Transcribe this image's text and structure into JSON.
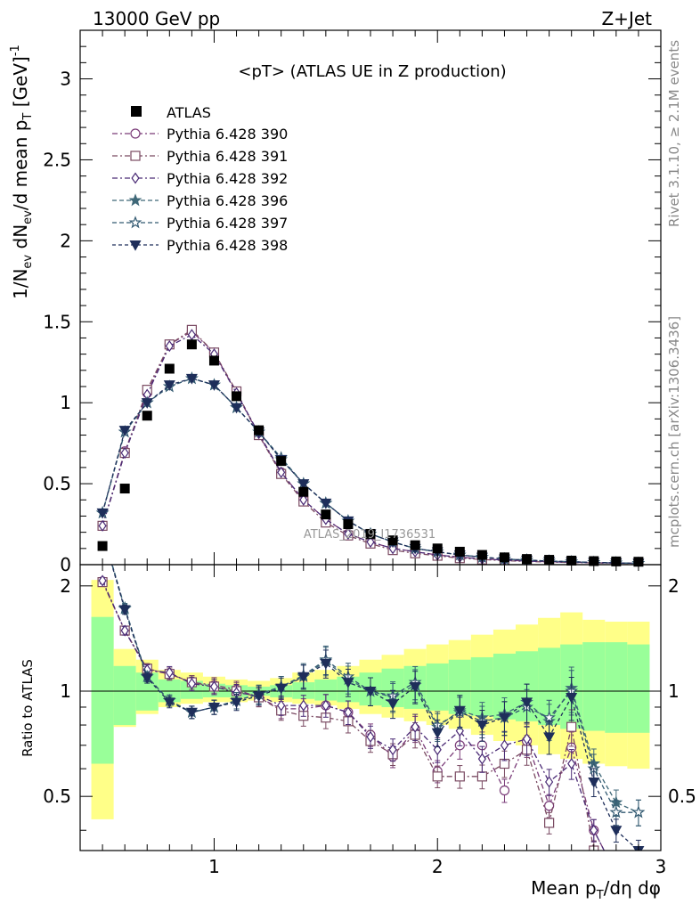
{
  "header": {
    "left": "13000 GeV pp",
    "right": "Z+Jet"
  },
  "side": {
    "rivet": "Rivet 3.1.10, ≥ 2.1M events",
    "mcplots": "mcplots.cern.ch [arXiv:1306.3436]"
  },
  "chart_data": {
    "type": "line",
    "title": "<pT> (ATLAS UE in Z production)",
    "watermark": "ATLAS_2019_I1736531",
    "xlabel": "Mean p_T/dη dφ",
    "ylabel": "1/N_ev dN_ev/d mean p_T [GeV]^-1",
    "ratio_ylabel": "Ratio to ATLAS",
    "xlim": [
      0.4,
      3.0
    ],
    "ylim": [
      0,
      3.3
    ],
    "ratio_ylim": [
      0.35,
      2.3
    ],
    "x_ticks": [
      "1",
      "2",
      "3"
    ],
    "y_ticks": [
      "0",
      "0.5",
      "1",
      "1.5",
      "2",
      "2.5",
      "3"
    ],
    "ratio_y_ticks": [
      "0.5",
      "1",
      "2"
    ],
    "x": [
      0.5,
      0.6,
      0.7,
      0.8,
      0.9,
      1.0,
      1.1,
      1.2,
      1.3,
      1.4,
      1.5,
      1.6,
      1.7,
      1.8,
      1.9,
      2.0,
      2.1,
      2.2,
      2.3,
      2.4,
      2.5,
      2.6,
      2.7,
      2.8,
      2.9
    ],
    "data": {
      "name": "ATLAS",
      "values": [
        0.115,
        0.47,
        0.92,
        1.21,
        1.36,
        1.26,
        1.04,
        0.83,
        0.64,
        0.45,
        0.31,
        0.25,
        0.19,
        0.15,
        0.12,
        0.1,
        0.08,
        0.06,
        0.045,
        0.035,
        0.03,
        0.025,
        0.022,
        0.02,
        0.018
      ]
    },
    "bands": {
      "inner": [
        [
          0.62,
          1.63
        ],
        [
          0.8,
          1.18
        ],
        [
          0.88,
          1.13
        ],
        [
          0.93,
          1.08
        ],
        [
          0.95,
          1.07
        ],
        [
          0.96,
          1.05
        ],
        [
          0.96,
          1.04
        ],
        [
          0.97,
          1.03
        ],
        [
          0.96,
          1.04
        ],
        [
          0.95,
          1.06
        ],
        [
          0.94,
          1.08
        ],
        [
          0.93,
          1.1
        ],
        [
          0.91,
          1.13
        ],
        [
          0.9,
          1.16
        ],
        [
          0.89,
          1.18
        ],
        [
          0.88,
          1.2
        ],
        [
          0.86,
          1.23
        ],
        [
          0.85,
          1.25
        ],
        [
          0.83,
          1.28
        ],
        [
          0.82,
          1.3
        ],
        [
          0.8,
          1.33
        ],
        [
          0.78,
          1.36
        ],
        [
          0.77,
          1.38
        ],
        [
          0.76,
          1.38
        ],
        [
          0.76,
          1.36
        ]
      ],
      "outer": [
        [
          0.43,
          2.08
        ],
        [
          0.79,
          1.32
        ],
        [
          0.86,
          1.23
        ],
        [
          0.9,
          1.15
        ],
        [
          0.92,
          1.13
        ],
        [
          0.93,
          1.1
        ],
        [
          0.93,
          1.08
        ],
        [
          0.94,
          1.07
        ],
        [
          0.93,
          1.09
        ],
        [
          0.92,
          1.13
        ],
        [
          0.91,
          1.15
        ],
        [
          0.89,
          1.18
        ],
        [
          0.86,
          1.23
        ],
        [
          0.84,
          1.27
        ],
        [
          0.82,
          1.32
        ],
        [
          0.8,
          1.36
        ],
        [
          0.78,
          1.4
        ],
        [
          0.75,
          1.45
        ],
        [
          0.72,
          1.5
        ],
        [
          0.7,
          1.55
        ],
        [
          0.66,
          1.62
        ],
        [
          0.64,
          1.68
        ],
        [
          0.62,
          1.6
        ],
        [
          0.61,
          1.58
        ],
        [
          0.6,
          1.58
        ]
      ]
    },
    "series": [
      {
        "name": "Pythia 6.428 390",
        "color": "#7a3b78",
        "dash": "6,3,2,3",
        "marker": "circle",
        "fill": "none",
        "values": [
          0.24,
          0.7,
          1.06,
          1.36,
          1.44,
          1.31,
          1.06,
          0.8,
          0.57,
          0.4,
          0.28,
          0.19,
          0.14,
          0.1,
          0.08,
          0.06,
          0.046,
          0.036,
          0.028,
          0.022,
          0.018,
          0.015,
          0.012,
          0.01,
          0.008
        ],
        "ratio": [
          2.06,
          1.49,
          1.15,
          1.12,
          1.06,
          1.04,
          1.01,
          0.96,
          0.89,
          0.89,
          0.91,
          0.87,
          0.75,
          0.65,
          0.78,
          0.59,
          0.7,
          0.7,
          0.52,
          0.72,
          0.47,
          0.69,
          0.4,
          0.3,
          0.3
        ]
      },
      {
        "name": "Pythia 6.428 391",
        "color": "#7a4a62",
        "dash": "6,3,2,3",
        "marker": "square",
        "fill": "none",
        "values": [
          0.24,
          0.69,
          1.08,
          1.36,
          1.45,
          1.31,
          1.07,
          0.8,
          0.56,
          0.39,
          0.26,
          0.18,
          0.13,
          0.09,
          0.07,
          0.055,
          0.04,
          0.032,
          0.025,
          0.02,
          0.016,
          0.013,
          0.011,
          0.009,
          0.007
        ],
        "ratio": [
          2.05,
          1.49,
          1.16,
          1.12,
          1.06,
          1.03,
          1.0,
          0.96,
          0.88,
          0.85,
          0.84,
          0.82,
          0.72,
          0.66,
          0.75,
          0.57,
          0.57,
          0.57,
          0.62,
          0.68,
          0.42,
          0.79,
          0.35,
          0.3,
          0.3
        ]
      },
      {
        "name": "Pythia 6.428 392",
        "color": "#4a2a75",
        "dash": "6,3,2,3",
        "marker": "diamond",
        "fill": "none",
        "values": [
          0.24,
          0.69,
          1.05,
          1.35,
          1.42,
          1.3,
          1.06,
          0.81,
          0.57,
          0.4,
          0.28,
          0.19,
          0.14,
          0.1,
          0.08,
          0.06,
          0.046,
          0.036,
          0.028,
          0.022,
          0.018,
          0.015,
          0.012,
          0.01,
          0.008
        ],
        "ratio": [
          2.07,
          1.49,
          1.15,
          1.13,
          1.05,
          1.03,
          0.99,
          0.97,
          0.91,
          0.91,
          0.91,
          0.87,
          0.74,
          0.68,
          0.79,
          0.68,
          0.77,
          0.64,
          0.7,
          0.73,
          0.55,
          0.62,
          0.4,
          0.3,
          0.3
        ]
      },
      {
        "name": "Pythia 6.428 396",
        "color": "#3f6878",
        "dash": "5,3",
        "marker": "star",
        "fill": "#3f6878",
        "values": [
          0.32,
          0.82,
          1.0,
          1.1,
          1.15,
          1.11,
          0.97,
          0.82,
          0.65,
          0.5,
          0.38,
          0.27,
          0.19,
          0.14,
          0.1,
          0.08,
          0.06,
          0.046,
          0.035,
          0.028,
          0.022,
          0.018,
          0.014,
          0.011,
          0.008
        ],
        "ratio": [
          2.85,
          1.72,
          1.1,
          0.94,
          0.87,
          0.9,
          0.94,
          0.98,
          1.03,
          1.1,
          1.22,
          1.08,
          1.0,
          0.96,
          1.04,
          0.79,
          0.88,
          0.84,
          0.86,
          0.93,
          0.82,
          1.02,
          0.62,
          0.48,
          0.45
        ]
      },
      {
        "name": "Pythia 6.428 397",
        "color": "#335a72",
        "dash": "5,3",
        "marker": "star",
        "fill": "none",
        "values": [
          0.32,
          0.82,
          1.0,
          1.1,
          1.15,
          1.11,
          0.97,
          0.82,
          0.66,
          0.5,
          0.38,
          0.27,
          0.19,
          0.14,
          0.1,
          0.08,
          0.06,
          0.046,
          0.035,
          0.028,
          0.022,
          0.018,
          0.014,
          0.011,
          0.008
        ],
        "ratio": [
          2.86,
          1.73,
          1.1,
          0.94,
          0.87,
          0.9,
          0.94,
          0.98,
          1.03,
          1.11,
          1.23,
          1.1,
          1.0,
          0.97,
          1.06,
          0.8,
          0.87,
          0.82,
          0.84,
          0.9,
          0.84,
          1.0,
          0.6,
          0.45,
          0.45
        ]
      },
      {
        "name": "Pythia 6.428 398",
        "color": "#1e2e5a",
        "dash": "4,3",
        "marker": "tri-down",
        "fill": "#1e2e5a",
        "values": [
          0.32,
          0.83,
          1.0,
          1.11,
          1.15,
          1.11,
          0.97,
          0.82,
          0.65,
          0.5,
          0.38,
          0.27,
          0.19,
          0.14,
          0.1,
          0.08,
          0.06,
          0.046,
          0.035,
          0.028,
          0.022,
          0.018,
          0.014,
          0.011,
          0.008
        ],
        "ratio": [
          2.84,
          1.71,
          1.09,
          0.93,
          0.87,
          0.9,
          0.93,
          0.97,
          1.02,
          1.1,
          1.2,
          1.06,
          1.0,
          0.92,
          1.03,
          0.76,
          0.88,
          0.8,
          0.84,
          0.93,
          0.74,
          0.96,
          0.55,
          0.4,
          0.35
        ]
      }
    ]
  }
}
